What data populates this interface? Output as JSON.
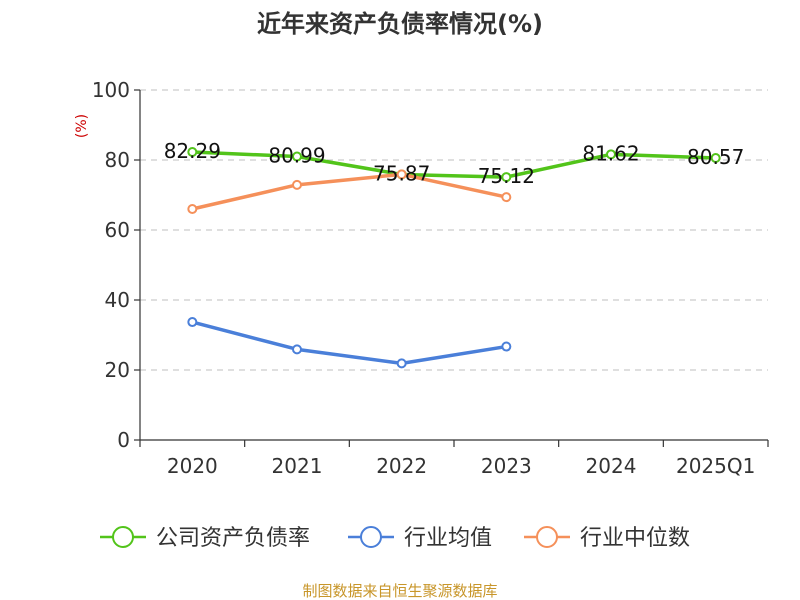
{
  "chart_data": {
    "type": "line",
    "title": "近年来资产负债率情况(%)",
    "y_unit_label": "(%)",
    "categories": [
      "2020",
      "2021",
      "2022",
      "2023",
      "2024",
      "2025Q1"
    ],
    "ylim": [
      0,
      100
    ],
    "y_ticks": [
      0,
      20,
      40,
      60,
      80,
      100
    ],
    "grid": true,
    "legend_position": "bottom",
    "series": [
      {
        "name": "公司资产负债率",
        "color": "#52c41a",
        "values": [
          82.29,
          80.99,
          75.87,
          75.12,
          81.62,
          80.57
        ],
        "labels": [
          "82.29",
          "80.99",
          "75.87",
          "75.12",
          "81.62",
          "80.57"
        ]
      },
      {
        "name": "行业均值",
        "color": "#4a7fd9",
        "values": [
          33.7,
          25.9,
          21.9,
          26.7,
          null,
          null
        ],
        "labels": []
      },
      {
        "name": "行业中位数",
        "color": "#f5905a",
        "values": [
          66.0,
          72.9,
          75.9,
          69.4,
          null,
          null
        ],
        "labels": []
      }
    ],
    "source": "制图数据来自恒生聚源数据库"
  }
}
